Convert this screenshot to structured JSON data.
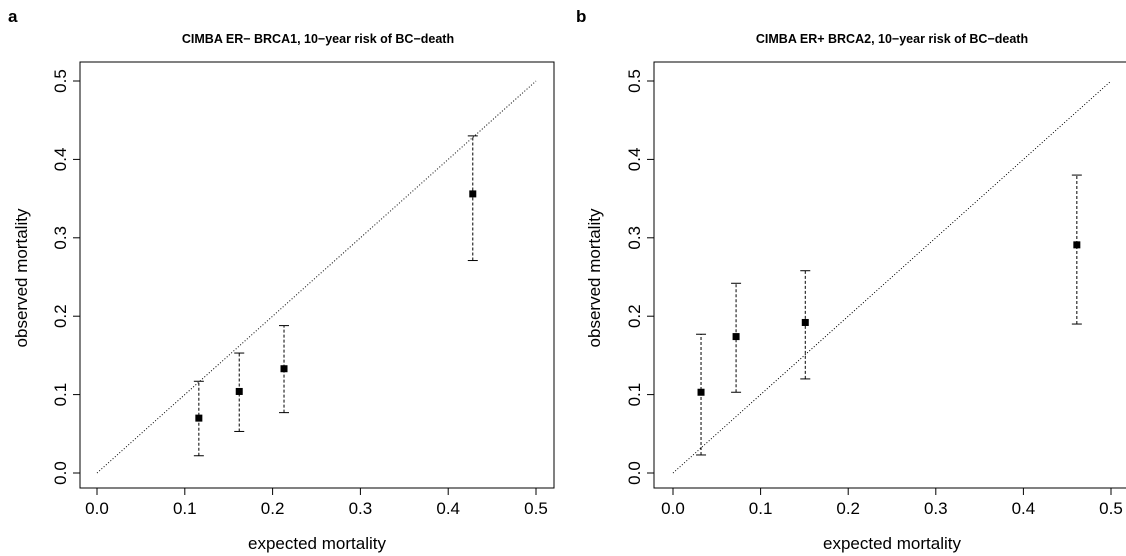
{
  "chart_data": [
    {
      "panel": "a",
      "type": "scatter",
      "title": "CIMBA ER− BRCA1, 10−year risk of BC−death",
      "xlabel": "expected mortality",
      "ylabel": "observed mortality",
      "xlim": [
        0.0,
        0.5
      ],
      "ylim": [
        0.0,
        0.5
      ],
      "xticks": [
        "0.0",
        "0.1",
        "0.2",
        "0.3",
        "0.4",
        "0.5"
      ],
      "yticks": [
        "0.0",
        "0.1",
        "0.2",
        "0.3",
        "0.4",
        "0.5"
      ],
      "grid": false,
      "reference_line": "y = x",
      "points": [
        {
          "x": 0.116,
          "y": 0.07,
          "lower": 0.022,
          "upper": 0.117
        },
        {
          "x": 0.162,
          "y": 0.104,
          "lower": 0.053,
          "upper": 0.153
        },
        {
          "x": 0.213,
          "y": 0.133,
          "lower": 0.077,
          "upper": 0.188
        },
        {
          "x": 0.428,
          "y": 0.356,
          "lower": 0.271,
          "upper": 0.43
        }
      ]
    },
    {
      "panel": "b",
      "type": "scatter",
      "title": "CIMBA ER+ BRCA2, 10−year risk of BC−death",
      "xlabel": "expected mortality",
      "ylabel": "observed mortality",
      "xlim": [
        0.0,
        0.5
      ],
      "ylim": [
        0.0,
        0.5
      ],
      "xticks": [
        "0.0",
        "0.1",
        "0.2",
        "0.3",
        "0.4",
        "0.5"
      ],
      "yticks": [
        "0.0",
        "0.1",
        "0.2",
        "0.3",
        "0.4",
        "0.5"
      ],
      "grid": false,
      "reference_line": "y = x",
      "points": [
        {
          "x": 0.032,
          "y": 0.103,
          "lower": 0.023,
          "upper": 0.177
        },
        {
          "x": 0.072,
          "y": 0.174,
          "lower": 0.103,
          "upper": 0.242
        },
        {
          "x": 0.151,
          "y": 0.192,
          "lower": 0.12,
          "upper": 0.258
        },
        {
          "x": 0.461,
          "y": 0.291,
          "lower": 0.19,
          "upper": 0.38
        }
      ]
    }
  ]
}
